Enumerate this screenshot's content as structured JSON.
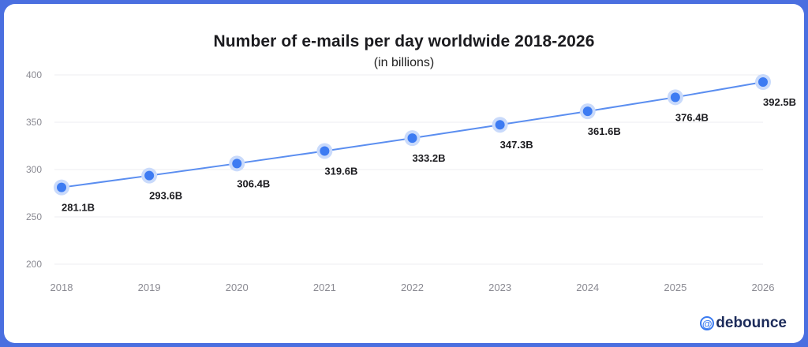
{
  "chart_data": {
    "type": "line",
    "title": "Number of e-mails per day worldwide 2018-2026",
    "subtitle": "(in billions)",
    "xlabel": "",
    "ylabel": "",
    "x": [
      "2018",
      "2019",
      "2020",
      "2021",
      "2022",
      "2023",
      "2024",
      "2025",
      "2026"
    ],
    "series": [
      {
        "values": [
          281.1,
          293.6,
          306.4,
          319.6,
          333.2,
          347.3,
          361.6,
          376.4,
          392.5
        ],
        "labels": [
          "281.1B",
          "293.6B",
          "306.4B",
          "319.6B",
          "333.2B",
          "347.3B",
          "361.6B",
          "376.4B",
          "392.5B"
        ]
      }
    ],
    "ylim": [
      200,
      400
    ],
    "yticks": [
      "200",
      "250",
      "300",
      "350",
      "400"
    ],
    "grid": true,
    "line_color": "#5b8ef0",
    "marker_color": "#3d7bf2",
    "marker_halo_color": "#c9dafb"
  },
  "brand": {
    "symbol": "@",
    "name": "debounce",
    "color": "#1c2b5a",
    "accent": "#3b7bf0"
  }
}
